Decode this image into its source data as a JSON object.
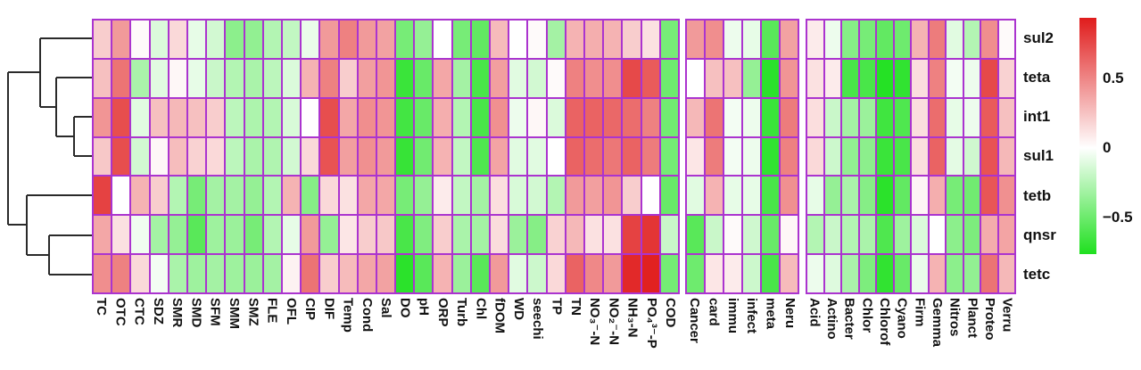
{
  "chart_data": {
    "type": "heatmap",
    "title": "",
    "rows": [
      "sul2",
      "teta",
      "int1",
      "sul1",
      "tetb",
      "qnsr",
      "tetc"
    ],
    "column_blocks": [
      {
        "name": "antibiotics-and-environmental-factors",
        "columns": [
          "TC",
          "OTC",
          "CTC",
          "SDZ",
          "SMR",
          "SMD",
          "SFM",
          "SMM",
          "SMZ",
          "FLE",
          "OFL",
          "CIP",
          "DIF",
          "Temp",
          "Cond",
          "Sal",
          "DO",
          "pH",
          "ORP",
          "Turb",
          "Chl",
          "fDOM",
          "WD",
          "seechi",
          "TP",
          "TN",
          "NO₃⁻-N",
          "NO₂⁻-N",
          "NH₃-N",
          "PO₄³⁻-P",
          "COD"
        ],
        "values": [
          [
            0.2,
            0.4,
            0.02,
            -0.12,
            0.15,
            -0.08,
            -0.15,
            -0.38,
            -0.36,
            -0.25,
            -0.2,
            -0.07,
            0.4,
            0.5,
            0.4,
            0.37,
            -0.45,
            -0.35,
            0.0,
            -0.45,
            -0.52,
            0.27,
            0.0,
            0.02,
            -0.3,
            0.3,
            0.32,
            0.3,
            0.2,
            0.12,
            -0.45
          ],
          [
            0.25,
            0.55,
            -0.28,
            -0.1,
            0.03,
            -0.08,
            -0.18,
            -0.25,
            -0.28,
            -0.22,
            -0.12,
            0.3,
            0.5,
            0.2,
            0.38,
            0.42,
            -0.65,
            -0.5,
            0.35,
            -0.3,
            -0.6,
            0.38,
            -0.1,
            -0.15,
            0.02,
            0.5,
            0.45,
            0.45,
            0.72,
            0.65,
            -0.48
          ],
          [
            0.42,
            0.7,
            -0.1,
            0.25,
            0.28,
            0.25,
            0.2,
            -0.22,
            -0.27,
            -0.25,
            -0.13,
            0.0,
            0.7,
            0.35,
            0.45,
            0.42,
            -0.62,
            -0.5,
            0.32,
            -0.25,
            -0.6,
            0.44,
            -0.06,
            0.03,
            -0.12,
            0.62,
            0.62,
            0.6,
            0.58,
            0.5,
            -0.47
          ],
          [
            0.22,
            0.7,
            -0.15,
            0.03,
            0.26,
            0.18,
            0.15,
            -0.22,
            -0.28,
            -0.26,
            -0.15,
            0.15,
            0.68,
            0.38,
            0.44,
            0.4,
            -0.66,
            -0.47,
            0.3,
            -0.2,
            -0.58,
            0.36,
            -0.1,
            -0.1,
            0.0,
            0.62,
            0.58,
            0.54,
            0.62,
            0.52,
            -0.46
          ],
          [
            0.75,
            0.0,
            0.3,
            0.2,
            -0.25,
            -0.45,
            -0.3,
            -0.3,
            -0.35,
            -0.25,
            0.3,
            -0.4,
            0.15,
            0.12,
            0.35,
            0.35,
            -0.45,
            -0.35,
            0.08,
            -0.2,
            -0.3,
            0.13,
            -0.13,
            -0.15,
            -0.25,
            0.4,
            0.38,
            0.42,
            0.2,
            0.0,
            -0.5
          ],
          [
            0.35,
            0.12,
            -0.05,
            -0.3,
            -0.35,
            -0.55,
            -0.32,
            -0.33,
            -0.45,
            -0.25,
            -0.08,
            0.4,
            -0.35,
            0.1,
            0.2,
            0.22,
            -0.6,
            -0.42,
            0.2,
            -0.28,
            -0.3,
            0.14,
            -0.33,
            -0.4,
            0.18,
            0.28,
            0.12,
            0.12,
            0.75,
            0.8,
            -0.18
          ],
          [
            0.45,
            0.5,
            0.15,
            -0.04,
            -0.28,
            -0.32,
            -0.3,
            -0.32,
            -0.33,
            -0.3,
            0.05,
            0.55,
            0.2,
            0.27,
            0.35,
            0.37,
            -0.7,
            -0.55,
            0.3,
            -0.33,
            -0.55,
            0.4,
            -0.1,
            -0.17,
            0.15,
            0.62,
            0.47,
            0.4,
            0.85,
            0.88,
            -0.46
          ]
        ]
      },
      {
        "name": "disease-categories",
        "columns": [
          "Cancer",
          "card",
          "immu",
          "infect",
          "meta",
          "Neru"
        ],
        "values": [
          [
            0.4,
            0.45,
            -0.06,
            -0.08,
            -0.55,
            0.37
          ],
          [
            0.0,
            0.25,
            0.25,
            -0.35,
            -0.7,
            0.42
          ],
          [
            0.28,
            0.55,
            -0.04,
            -0.06,
            -0.65,
            0.52
          ],
          [
            0.1,
            0.52,
            -0.04,
            -0.06,
            -0.68,
            0.5
          ],
          [
            -0.1,
            0.3,
            -0.08,
            -0.08,
            -0.6,
            0.44
          ],
          [
            -0.55,
            -0.18,
            0.02,
            -0.16,
            -0.5,
            0.03
          ],
          [
            -0.48,
            0.1,
            0.08,
            -0.17,
            -0.6,
            0.27
          ]
        ]
      },
      {
        "name": "bacterial-phyla",
        "columns": [
          "Acid",
          "Actino",
          "Bacter",
          "Chlor",
          "Chlorof",
          "Cyano",
          "Firm",
          "Gemma",
          "Nitros",
          "Planct",
          "Proteo",
          "Verru"
        ],
        "values": [
          [
            0.08,
            -0.06,
            -0.4,
            -0.45,
            -0.52,
            -0.48,
            0.3,
            0.52,
            -0.1,
            -0.25,
            0.45,
            0.02
          ],
          [
            0.12,
            0.08,
            -0.6,
            -0.6,
            -0.72,
            -0.68,
            0.13,
            0.5,
            -0.04,
            -0.06,
            0.72,
            0.18
          ],
          [
            0.13,
            -0.18,
            -0.3,
            -0.33,
            -0.63,
            -0.58,
            0.13,
            0.58,
            -0.08,
            -0.06,
            0.65,
            0.25
          ],
          [
            0.15,
            -0.17,
            -0.36,
            -0.38,
            -0.65,
            -0.6,
            0.13,
            0.62,
            -0.09,
            -0.16,
            0.68,
            0.28
          ],
          [
            -0.08,
            -0.35,
            -0.28,
            -0.4,
            -0.7,
            -0.52,
            0.04,
            0.32,
            -0.45,
            -0.47,
            0.67,
            0.44
          ],
          [
            -0.25,
            -0.18,
            -0.25,
            -0.28,
            -0.58,
            -0.32,
            -0.12,
            0.0,
            -0.38,
            -0.43,
            0.33,
            0.36
          ],
          [
            -0.06,
            -0.11,
            -0.28,
            -0.43,
            -0.68,
            -0.5,
            -0.07,
            0.3,
            -0.38,
            -0.36,
            0.55,
            0.28
          ]
        ]
      }
    ],
    "colorbar": {
      "ticks": [
        {
          "label": "0.5",
          "value": 0.5
        },
        {
          "label": "0",
          "value": 0
        },
        {
          "label": "-0.5",
          "value": -0.5
        }
      ],
      "max": 0.94,
      "min": -0.76,
      "position": "right"
    },
    "colors": {
      "positive_end": "#e01c1c",
      "zero": "#ffffff",
      "negative_end": "#1fe01f",
      "grid": "#ab34cf",
      "dendrogram": "#2a2a2a",
      "label_text": "#111111"
    },
    "dendrogram": {
      "orientation": "left",
      "merges": [
        [
          "int1",
          "sul1"
        ],
        [
          "teta",
          "(int1,sul1)"
        ],
        [
          "sul2",
          "(teta,(int1,sul1))"
        ],
        [
          "qnsr",
          "tetc"
        ],
        [
          "tetb",
          "(qnsr,tetc)"
        ],
        [
          "(sul2-cluster)",
          "(tetb-cluster)"
        ]
      ],
      "segments": [
        [
          9,
          81,
          9,
          252
        ],
        [
          9,
          81,
          45,
          81
        ],
        [
          9,
          252,
          30,
          252
        ],
        [
          45,
          43,
          45,
          120
        ],
        [
          45,
          43,
          103,
          43
        ],
        [
          45,
          120,
          63,
          120
        ],
        [
          63,
          87,
          63,
          153
        ],
        [
          63,
          87,
          103,
          87
        ],
        [
          63,
          153,
          83,
          153
        ],
        [
          83,
          131,
          83,
          175
        ],
        [
          83,
          131,
          103,
          131
        ],
        [
          83,
          175,
          103,
          175
        ],
        [
          30,
          219,
          30,
          286
        ],
        [
          30,
          219,
          103,
          219
        ],
        [
          30,
          286,
          55,
          286
        ],
        [
          55,
          264,
          55,
          308
        ],
        [
          55,
          264,
          103,
          264
        ],
        [
          55,
          308,
          103,
          308
        ]
      ]
    },
    "grid": true,
    "legend_position": "right"
  }
}
